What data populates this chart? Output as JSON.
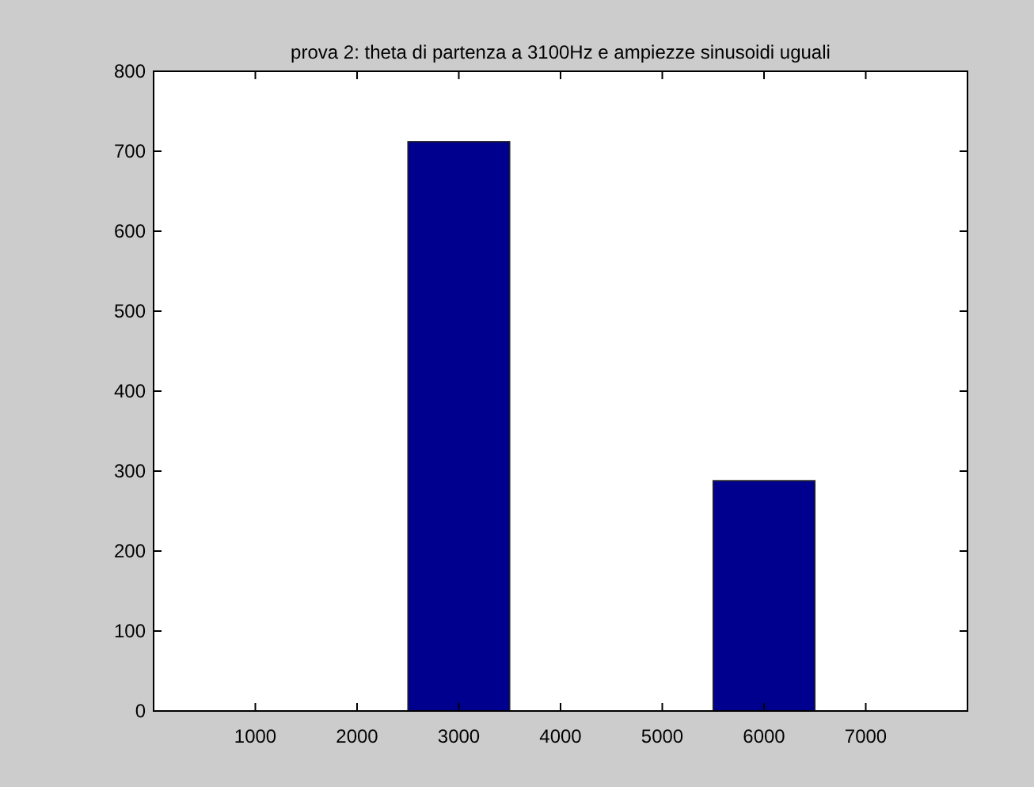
{
  "chart_data": {
    "type": "histogram",
    "title": "prova 2: theta di partenza a 3100Hz e ampiezze sinusoidi uguali",
    "bins": [
      500,
      1500,
      2500,
      3500,
      4500,
      5500,
      6500,
      7500
    ],
    "values": [
      0,
      0,
      712,
      0,
      0,
      288,
      0
    ],
    "color": "#00008f",
    "xlim": [
      0,
      8000
    ],
    "xticks": [
      1000,
      2000,
      3000,
      4000,
      5000,
      6000,
      7000
    ],
    "ylim": [
      0,
      800
    ],
    "yticks": [
      0,
      100,
      200,
      300,
      400,
      500,
      600,
      700,
      800
    ],
    "grid": false
  }
}
